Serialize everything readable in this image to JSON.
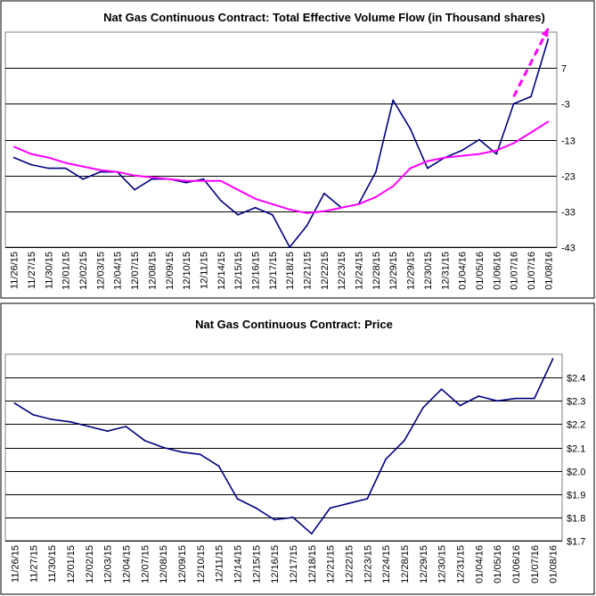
{
  "chart_data": [
    {
      "type": "line",
      "title": "Nat Gas Continuous Contract: Total Effective Volume Flow (in Thousand shares)",
      "ylim": [
        -43,
        17
      ],
      "y_ticks": [
        7,
        -3,
        -13,
        -23,
        -33,
        -43
      ],
      "y_tick_labels": [
        "7",
        "-3",
        "-13",
        "-23",
        "-33",
        "-43"
      ],
      "categories": [
        "11/26/15",
        "11/27/15",
        "11/30/15",
        "12/01/15",
        "12/02/15",
        "12/03/15",
        "12/04/15",
        "12/07/15",
        "12/08/15",
        "12/09/15",
        "12/10/15",
        "12/11/15",
        "12/14/15",
        "12/15/15",
        "12/16/15",
        "12/17/15",
        "12/18/15",
        "12/21/15",
        "12/22/15",
        "12/23/15",
        "12/24/15",
        "12/28/15",
        "12/29/15",
        "12/29/15",
        "12/30/15",
        "12/31/15",
        "01/04/16",
        "01/05/16",
        "01/06/16",
        "01/07/16",
        "01/07/16",
        "01/08/16"
      ],
      "series": [
        {
          "color": "#000080",
          "values": [
            -18,
            -20,
            -21,
            -21,
            -24,
            -22,
            -22,
            -27,
            -24,
            -24,
            -25,
            -24,
            -30,
            -34,
            -32,
            -34,
            -43,
            -37,
            -28,
            -32,
            -31,
            -22,
            -2,
            -10,
            -21,
            -18,
            -16,
            -13,
            -17,
            -3,
            -1,
            15
          ]
        },
        {
          "color": "#ff00ff",
          "values": [
            -15,
            -17,
            -18,
            -19.5,
            -20.5,
            -21.5,
            -22,
            -23,
            -23.5,
            -24,
            -24.5,
            -24.5,
            -24.5,
            -27,
            -29.5,
            -31,
            -32.5,
            -33.5,
            -33,
            -32,
            -31,
            -29,
            -26,
            -21,
            -19,
            -18,
            -17.5,
            -17,
            -16,
            -14,
            -11,
            -8
          ]
        }
      ],
      "annotations": [
        {
          "type": "dashed-arrow",
          "color": "#ff00ff",
          "from": {
            "x_index": 29,
            "y": -1
          },
          "to": {
            "x_index": 31,
            "y": 18
          }
        }
      ]
    },
    {
      "type": "line",
      "title": "Nat Gas Continuous Contract: Price",
      "ylim": [
        1.7,
        2.5
      ],
      "y_ticks": [
        2.4,
        2.3,
        2.2,
        2.1,
        2.0,
        1.9,
        1.8,
        1.7
      ],
      "y_tick_labels": [
        "$2.4",
        "$2.3",
        "$2.2",
        "$2.1",
        "$2.0",
        "$1.9",
        "$1.8",
        "$1.7"
      ],
      "categories": [
        "11/26/15",
        "11/27/15",
        "11/30/15",
        "12/01/15",
        "12/02/15",
        "12/03/15",
        "12/04/15",
        "12/07/15",
        "12/08/15",
        "12/09/15",
        "12/10/15",
        "12/11/15",
        "12/14/15",
        "12/15/15",
        "12/16/15",
        "12/17/15",
        "12/18/15",
        "12/21/15",
        "12/22/15",
        "12/23/15",
        "12/24/15",
        "12/28/15",
        "12/29/15",
        "12/30/15",
        "12/31/15",
        "01/04/16",
        "01/05/16",
        "01/06/16",
        "01/07/16",
        "01/08/16"
      ],
      "series": [
        {
          "color": "#000080",
          "values": [
            2.29,
            2.24,
            2.22,
            2.21,
            2.19,
            2.17,
            2.19,
            2.13,
            2.1,
            2.08,
            2.07,
            2.02,
            1.88,
            1.84,
            1.79,
            1.8,
            1.73,
            1.84,
            1.86,
            1.88,
            2.05,
            2.13,
            2.27,
            2.35,
            2.28,
            2.32,
            2.3,
            2.31,
            2.31,
            2.48
          ]
        }
      ]
    }
  ]
}
